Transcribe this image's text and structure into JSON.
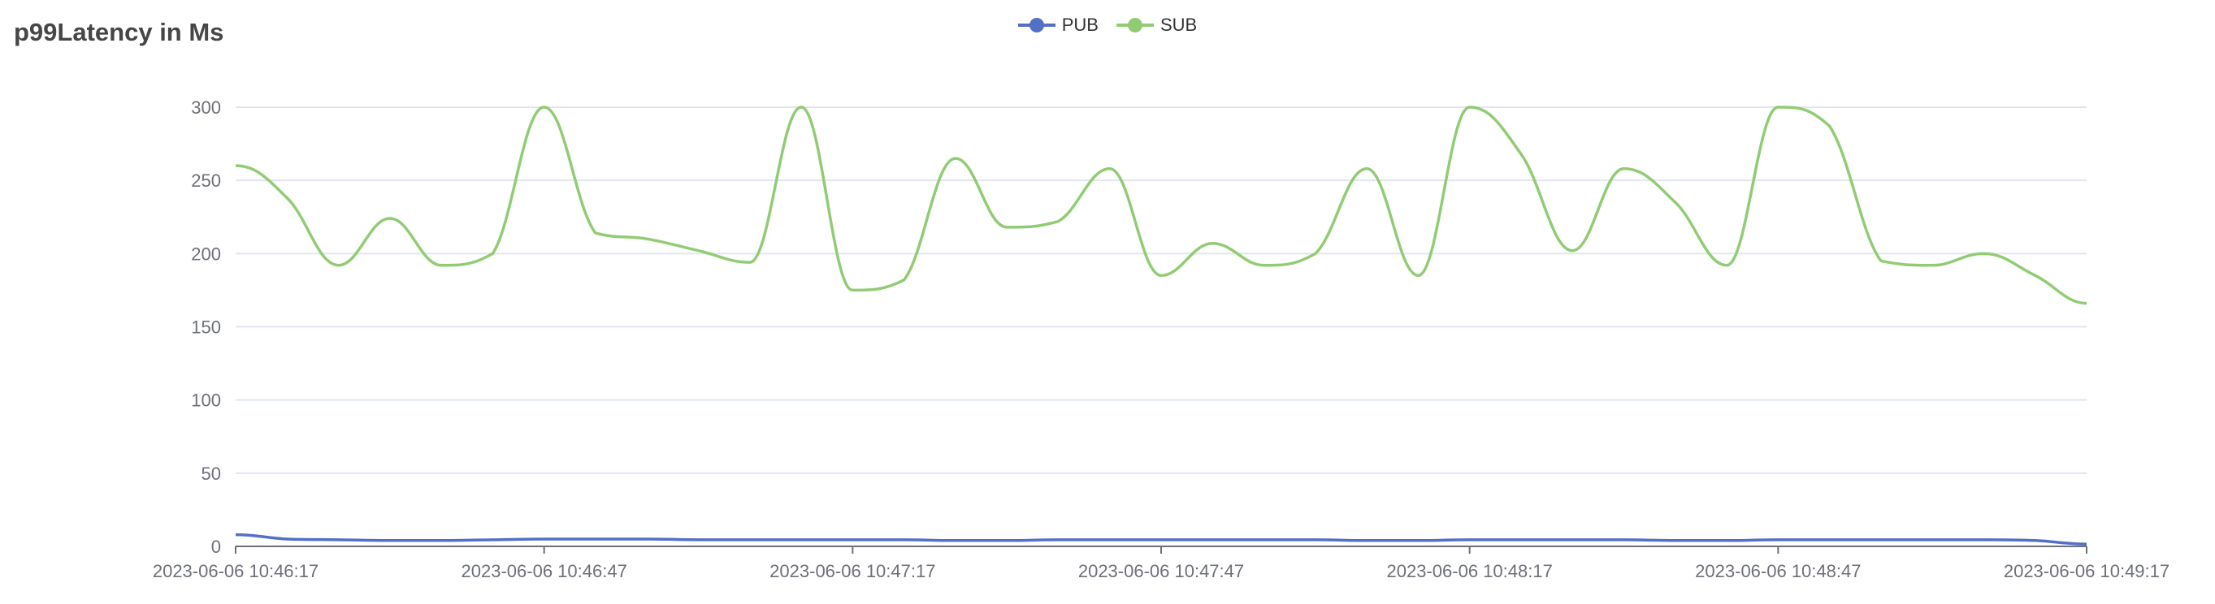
{
  "chart_data": {
    "type": "line",
    "title": "p99Latency in Ms",
    "xlabel": "",
    "ylabel": "",
    "ylim": [
      0,
      300
    ],
    "yticks": [
      0,
      50,
      100,
      150,
      200,
      250,
      300
    ],
    "grid": true,
    "smooth": true,
    "legend_position": "top-center",
    "x": [
      "2023-06-06 10:46:17",
      "2023-06-06 10:46:22",
      "2023-06-06 10:46:27",
      "2023-06-06 10:46:32",
      "2023-06-06 10:46:37",
      "2023-06-06 10:46:42",
      "2023-06-06 10:46:47",
      "2023-06-06 10:46:52",
      "2023-06-06 10:46:57",
      "2023-06-06 10:47:02",
      "2023-06-06 10:47:07",
      "2023-06-06 10:47:12",
      "2023-06-06 10:47:17",
      "2023-06-06 10:47:22",
      "2023-06-06 10:47:27",
      "2023-06-06 10:47:32",
      "2023-06-06 10:47:37",
      "2023-06-06 10:47:42",
      "2023-06-06 10:47:47",
      "2023-06-06 10:47:52",
      "2023-06-06 10:47:57",
      "2023-06-06 10:48:02",
      "2023-06-06 10:48:07",
      "2023-06-06 10:48:12",
      "2023-06-06 10:48:17",
      "2023-06-06 10:48:22",
      "2023-06-06 10:48:27",
      "2023-06-06 10:48:32",
      "2023-06-06 10:48:37",
      "2023-06-06 10:48:42",
      "2023-06-06 10:48:47",
      "2023-06-06 10:48:52",
      "2023-06-06 10:48:57",
      "2023-06-06 10:49:02",
      "2023-06-06 10:49:07",
      "2023-06-06 10:49:12",
      "2023-06-06 10:49:17"
    ],
    "xtick_labels": [
      "2023-06-06 10:46:17",
      "2023-06-06 10:46:47",
      "2023-06-06 10:47:17",
      "2023-06-06 10:47:47",
      "2023-06-06 10:48:17",
      "2023-06-06 10:48:47",
      "2023-06-06 10:49:17"
    ],
    "series": [
      {
        "name": "PUB",
        "color": "#5470c6",
        "values": [
          8,
          5,
          4.5,
          4,
          4,
          4.5,
          5,
          5,
          5,
          4.5,
          4.5,
          4.5,
          4.5,
          4.5,
          4,
          4,
          4.5,
          4.5,
          4.5,
          4.5,
          4.5,
          4.5,
          4,
          4,
          4.5,
          4.5,
          4.5,
          4.5,
          4,
          4,
          4.5,
          4.5,
          4.5,
          4.5,
          4.5,
          4,
          1.5
        ]
      },
      {
        "name": "SUB",
        "color": "#91cc75",
        "values": [
          260,
          238,
          192,
          224,
          192,
          200,
          300,
          214,
          210,
          202,
          194,
          300,
          175,
          182,
          265,
          218,
          222,
          258,
          185,
          207,
          192,
          200,
          258,
          185,
          300,
          268,
          202,
          258,
          235,
          192,
          300,
          287,
          195,
          192,
          200,
          185,
          166
        ]
      }
    ]
  }
}
